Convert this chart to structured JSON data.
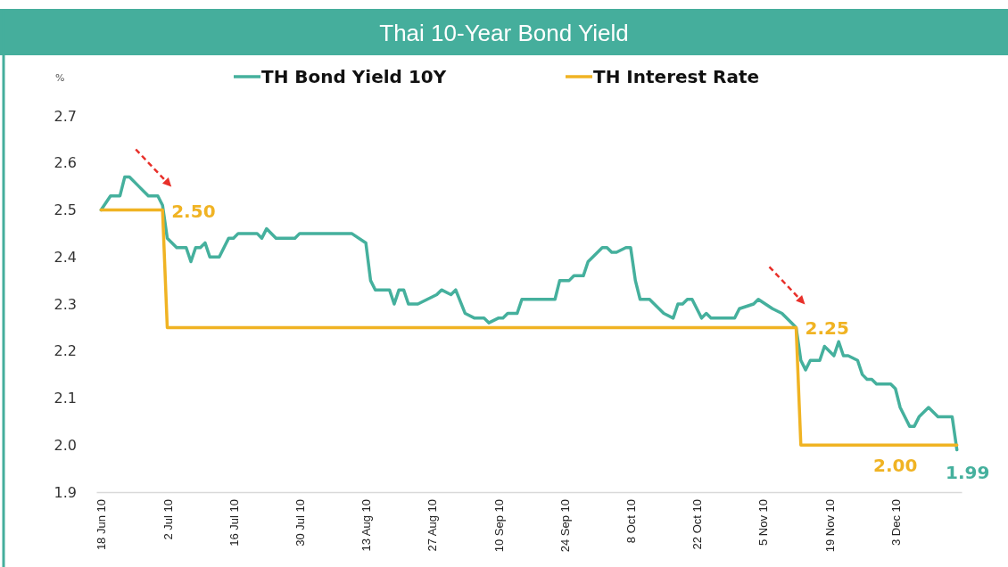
{
  "chart_data": {
    "type": "line",
    "title": "Thai 10-Year Bond Yield",
    "ylabel": "%",
    "legend": "top",
    "marker": "none",
    "line_style": "solid",
    "grid": false,
    "xlim": [
      "2010-06-17",
      "2010-12-17"
    ],
    "ylim": [
      1.9,
      2.7
    ],
    "yticks": [
      {
        "value": 1.9,
        "label": "1.9"
      },
      {
        "value": 2.0,
        "label": "2.0"
      },
      2.1,
      2.2,
      2.3,
      2.4,
      2.5,
      2.6,
      2.7
    ],
    "xticks": [
      {
        "value": "2010-06-18",
        "label": "18 Jun 10"
      },
      {
        "value": "2010-07-02",
        "label": "2 Jul 10"
      },
      {
        "value": "2010-07-16",
        "label": "16 Jul 10"
      },
      {
        "value": "2010-07-30",
        "label": "30 Jul 10"
      },
      {
        "value": "2010-08-13",
        "label": "13 Aug 10"
      },
      {
        "value": "2010-08-27",
        "label": "27 Aug 10"
      },
      {
        "value": "2010-09-10",
        "label": "10 Sep 10"
      },
      {
        "value": "2010-09-24",
        "label": "24 Sep 10"
      },
      {
        "value": "2010-10-08",
        "label": "8 Oct 10"
      },
      {
        "value": "2010-10-22",
        "label": "22 Oct 10"
      },
      {
        "value": "2010-11-05",
        "label": "5 Nov 10"
      },
      {
        "value": "2010-11-19",
        "label": "19 Nov 10"
      },
      {
        "value": "2010-12-03",
        "label": "3 Dec 10"
      }
    ],
    "series": [
      {
        "name": "TH Bond Yield 10Y",
        "color": "#45b09d",
        "x": [
          "2010-06-18",
          "2010-06-20",
          "2010-06-22",
          "2010-06-23",
          "2010-06-24",
          "2010-06-26",
          "2010-06-27",
          "2010-06-28",
          "2010-06-30",
          "2010-07-01",
          "2010-07-02",
          "2010-07-04",
          "2010-07-06",
          "2010-07-07",
          "2010-07-08",
          "2010-07-09",
          "2010-07-10",
          "2010-07-11",
          "2010-07-13",
          "2010-07-15",
          "2010-07-16",
          "2010-07-17",
          "2010-07-21",
          "2010-07-22",
          "2010-07-23",
          "2010-07-25",
          "2010-07-28",
          "2010-07-29",
          "2010-07-30",
          "2010-08-04",
          "2010-08-10",
          "2010-08-13",
          "2010-08-14",
          "2010-08-15",
          "2010-08-18",
          "2010-08-19",
          "2010-08-20",
          "2010-08-21",
          "2010-08-22",
          "2010-08-24",
          "2010-08-26",
          "2010-08-28",
          "2010-08-29",
          "2010-08-31",
          "2010-09-01",
          "2010-09-03",
          "2010-09-05",
          "2010-09-07",
          "2010-09-08",
          "2010-09-10",
          "2010-09-11",
          "2010-09-12",
          "2010-09-14",
          "2010-09-15",
          "2010-09-17",
          "2010-09-18",
          "2010-09-20",
          "2010-09-22",
          "2010-09-23",
          "2010-09-25",
          "2010-09-26",
          "2010-09-28",
          "2010-09-29",
          "2010-10-02",
          "2010-10-03",
          "2010-10-04",
          "2010-10-05",
          "2010-10-07",
          "2010-10-08",
          "2010-10-09",
          "2010-10-10",
          "2010-10-11",
          "2010-10-12",
          "2010-10-14",
          "2010-10-15",
          "2010-10-17",
          "2010-10-18",
          "2010-10-19",
          "2010-10-20",
          "2010-10-21",
          "2010-10-23",
          "2010-10-24",
          "2010-10-25",
          "2010-10-26",
          "2010-10-27",
          "2010-10-29",
          "2010-10-30",
          "2010-10-31",
          "2010-11-03",
          "2010-11-04",
          "2010-11-07",
          "2010-11-09",
          "2010-11-11",
          "2010-11-12",
          "2010-11-13",
          "2010-11-14",
          "2010-11-15",
          "2010-11-17",
          "2010-11-18",
          "2010-11-20",
          "2010-11-21",
          "2010-11-22",
          "2010-11-23",
          "2010-11-25",
          "2010-11-26",
          "2010-11-27",
          "2010-11-28",
          "2010-11-29",
          "2010-12-01",
          "2010-12-02",
          "2010-12-03",
          "2010-12-04",
          "2010-12-06",
          "2010-12-07",
          "2010-12-08",
          "2010-12-10",
          "2010-12-11",
          "2010-12-12",
          "2010-12-15",
          "2010-12-16"
        ],
        "values": [
          2.5,
          2.53,
          2.53,
          2.57,
          2.57,
          2.55,
          2.54,
          2.53,
          2.53,
          2.51,
          2.44,
          2.42,
          2.42,
          2.39,
          2.42,
          2.42,
          2.43,
          2.4,
          2.4,
          2.44,
          2.44,
          2.45,
          2.45,
          2.44,
          2.46,
          2.44,
          2.44,
          2.44,
          2.45,
          2.45,
          2.45,
          2.43,
          2.35,
          2.33,
          2.33,
          2.3,
          2.33,
          2.33,
          2.3,
          2.3,
          2.31,
          2.32,
          2.33,
          2.32,
          2.33,
          2.28,
          2.27,
          2.27,
          2.26,
          2.27,
          2.27,
          2.28,
          2.28,
          2.31,
          2.31,
          2.31,
          2.31,
          2.31,
          2.35,
          2.35,
          2.36,
          2.36,
          2.39,
          2.42,
          2.42,
          2.41,
          2.41,
          2.42,
          2.42,
          2.35,
          2.31,
          2.31,
          2.31,
          2.29,
          2.28,
          2.27,
          2.3,
          2.3,
          2.31,
          2.31,
          2.27,
          2.28,
          2.27,
          2.27,
          2.27,
          2.27,
          2.27,
          2.29,
          2.3,
          2.31,
          2.29,
          2.28,
          2.26,
          2.25,
          2.18,
          2.16,
          2.18,
          2.18,
          2.21,
          2.19,
          2.22,
          2.19,
          2.19,
          2.18,
          2.15,
          2.14,
          2.14,
          2.13,
          2.13,
          2.13,
          2.12,
          2.08,
          2.04,
          2.04,
          2.06,
          2.08,
          2.07,
          2.06,
          2.06,
          1.99
        ]
      },
      {
        "name": "TH Interest Rate",
        "color": "#f0b323",
        "x": [
          "2010-06-18",
          "2010-07-01",
          "2010-07-02",
          "2010-11-12",
          "2010-11-13",
          "2010-12-16"
        ],
        "values": [
          2.5,
          2.5,
          2.25,
          2.25,
          2.0,
          2.0
        ]
      }
    ],
    "annotations": [
      {
        "text": "2.50",
        "x": "2010-07-01",
        "y": 2.5
      },
      {
        "text": "2.25",
        "x": "2010-11-12",
        "y": 2.25
      },
      {
        "text": "2.00",
        "x": "2010-12-03",
        "y": 2.0
      },
      {
        "text": "1.99",
        "x": "2010-12-16",
        "y": 1.99
      }
    ]
  }
}
